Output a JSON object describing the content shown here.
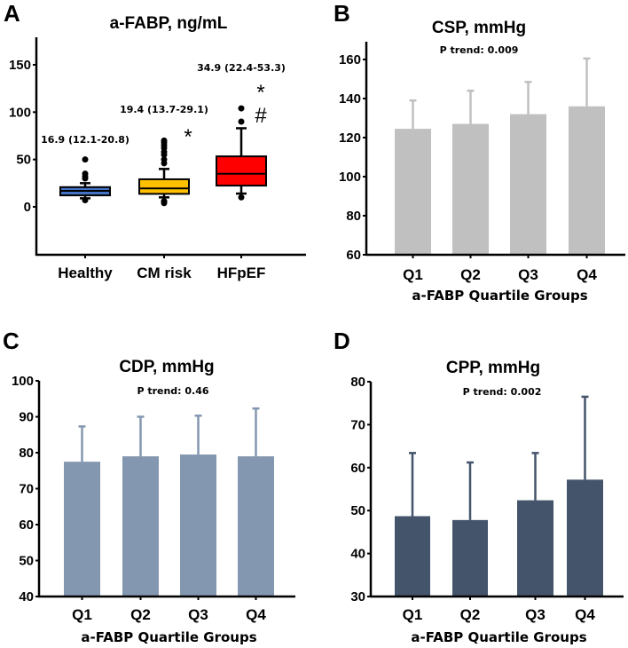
{
  "chart_data": [
    {
      "panel": "A",
      "type": "box",
      "title": "a-FABP, ng/mL",
      "ylim": [
        -50,
        180
      ],
      "yticks": [
        0,
        50,
        100,
        150
      ],
      "categories": [
        "Healthy",
        "CM risk",
        "HFpEF"
      ],
      "colors": [
        "#4472c4",
        "#ffc000",
        "#ff0000"
      ],
      "boxes": [
        {
          "q1": 12.1,
          "median": 16.9,
          "q3": 20.8,
          "whisker_low": 9,
          "whisker_high": 25,
          "outliers": [
            50,
            35,
            32,
            30,
            7
          ],
          "annotation": "16.9 (12.1-20.8)",
          "marks": []
        },
        {
          "q1": 13.7,
          "median": 19.4,
          "q3": 29.1,
          "whisker_low": 10,
          "whisker_high": 40,
          "outliers": [
            70,
            68,
            65,
            62,
            58,
            55,
            50,
            46,
            6,
            4
          ],
          "annotation": "19.4 (13.7-29.1)",
          "marks": [
            "*"
          ]
        },
        {
          "q1": 22.4,
          "median": 34.9,
          "q3": 53.3,
          "whisker_low": 14,
          "whisker_high": 83,
          "outliers": [
            104,
            90,
            10
          ],
          "annotation": "34.9 (22.4-53.3)",
          "marks": [
            "*",
            "#"
          ]
        }
      ]
    },
    {
      "panel": "B",
      "type": "bar",
      "title": "CSP, mmHg",
      "subtitle": "P trend: 0.009",
      "xlabel": "a-FABP Quartile Groups",
      "categories": [
        "Q1",
        "Q2",
        "Q3",
        "Q4"
      ],
      "values": [
        124.5,
        127,
        132,
        136
      ],
      "error_upper": [
        139,
        144,
        148.5,
        160.5
      ],
      "ylim": [
        60,
        168
      ],
      "yticks": [
        60,
        80,
        100,
        120,
        140,
        160
      ],
      "color": "#c0c0c0"
    },
    {
      "panel": "C",
      "type": "bar",
      "title": "CDP, mmHg",
      "subtitle": "P trend: 0.46",
      "xlabel": "a-FABP Quartile Groups",
      "categories": [
        "Q1",
        "Q2",
        "Q3",
        "Q4"
      ],
      "values": [
        77.5,
        79,
        79.5,
        79
      ],
      "error_upper": [
        87.3,
        90,
        90.3,
        92.3
      ],
      "ylim": [
        40,
        100
      ],
      "yticks": [
        40,
        50,
        60,
        70,
        80,
        90,
        100
      ],
      "color": "#8497b0"
    },
    {
      "panel": "D",
      "type": "bar",
      "title": "CPP, mmHg",
      "subtitle": "P trend: 0.002",
      "xlabel": "a-FABP Quartile Groups",
      "categories": [
        "Q1",
        "Q2",
        "Q3",
        "Q4"
      ],
      "values": [
        48.7,
        47.8,
        52.4,
        57.2
      ],
      "error_upper": [
        63.4,
        61.2,
        63.4,
        76.5
      ],
      "ylim": [
        30,
        80
      ],
      "yticks": [
        30,
        40,
        50,
        60,
        70,
        80
      ],
      "color": "#44546a"
    }
  ]
}
